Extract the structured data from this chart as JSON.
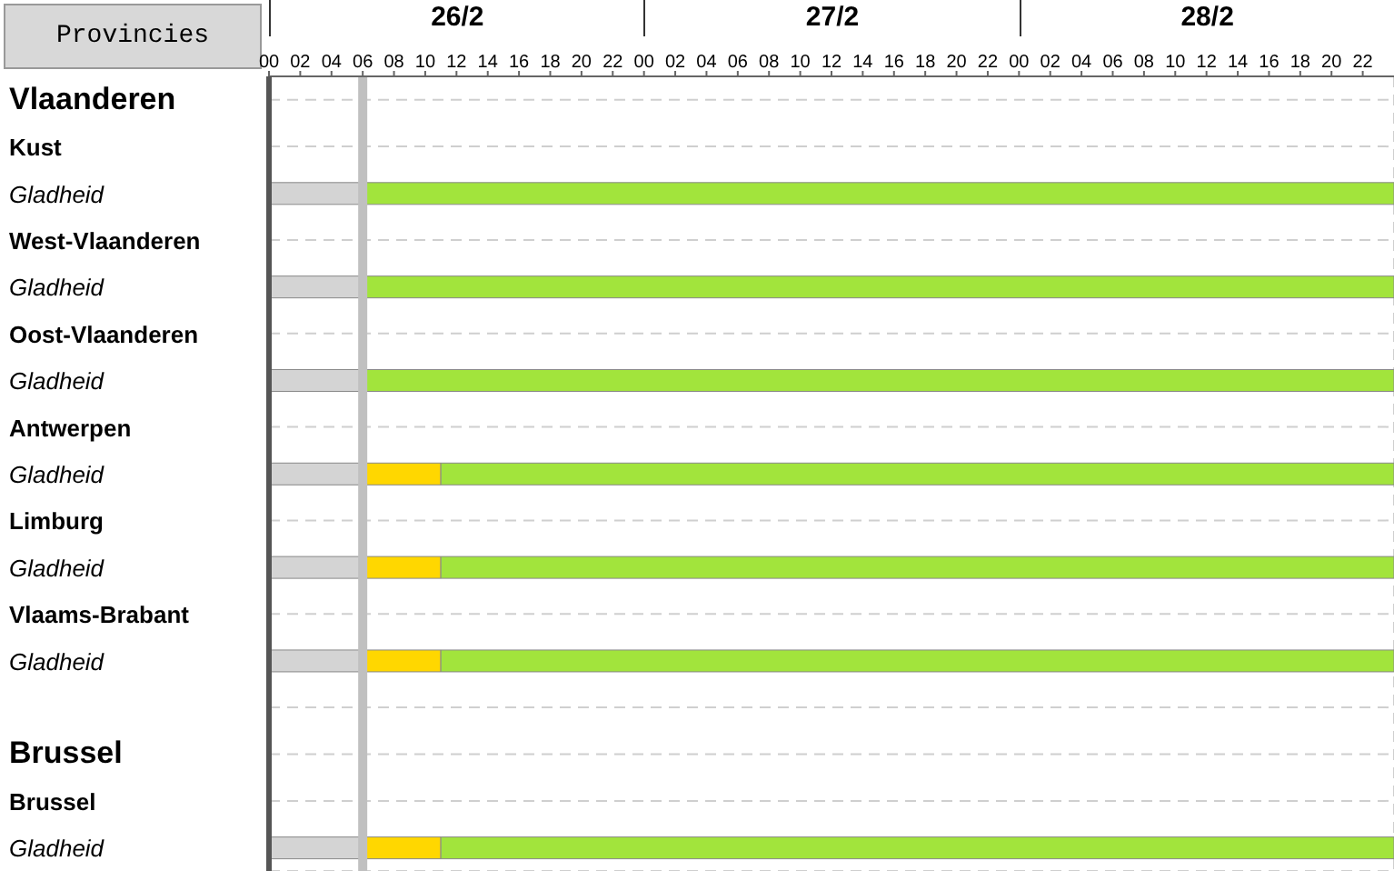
{
  "chart_data": {
    "type": "bar",
    "orientation": "horizontal",
    "stacked": true,
    "ylabel": "Provincies",
    "categories": [
      "Vlaanderen",
      "Kust",
      "Gladheid",
      "West-Vlaanderen",
      "Gladheid",
      "Oost-Vlaanderen",
      "Gladheid",
      "Antwerpen",
      "Gladheid",
      "Limburg",
      "Gladheid",
      "Vlaams-Brabant",
      "Gladheid",
      null,
      "Brussel",
      "Brussel",
      "Gladheid"
    ],
    "series": [
      {
        "color": "#d4d4d4",
        "values": [
          null,
          null,
          6,
          null,
          6,
          null,
          6,
          null,
          6,
          null,
          6,
          null,
          6,
          null,
          null,
          null,
          6
        ]
      },
      {
        "color": "#ffd700",
        "values": [
          null,
          null,
          null,
          null,
          null,
          null,
          null,
          null,
          5,
          null,
          5,
          null,
          5,
          null,
          null,
          null,
          5
        ]
      },
      {
        "color": "#a2e43c",
        "values": [
          null,
          null,
          66,
          null,
          66,
          null,
          66,
          null,
          61,
          null,
          61,
          null,
          61,
          null,
          null,
          null,
          61
        ]
      }
    ],
    "xlim": [
      0,
      72
    ],
    "xticks": [
      {
        "value": 0,
        "label": "00"
      },
      {
        "value": 2,
        "label": "02"
      },
      {
        "value": 4,
        "label": "04"
      },
      {
        "value": 6,
        "label": "06"
      },
      {
        "value": 8,
        "label": "08"
      },
      {
        "value": 10,
        "label": "10"
      },
      {
        "value": 12,
        "label": "12"
      },
      {
        "value": 14,
        "label": "14"
      },
      {
        "value": 16,
        "label": "16"
      },
      {
        "value": 18,
        "label": "18"
      },
      {
        "value": 20,
        "label": "20"
      },
      {
        "value": 22,
        "label": "22"
      },
      {
        "value": 24,
        "label": "00"
      },
      {
        "value": 26,
        "label": "02"
      },
      {
        "value": 28,
        "label": "04"
      },
      {
        "value": 30,
        "label": "06"
      },
      {
        "value": 32,
        "label": "08"
      },
      {
        "value": 34,
        "label": "10"
      },
      {
        "value": 36,
        "label": "12"
      },
      {
        "value": 38,
        "label": "14"
      },
      {
        "value": 40,
        "label": "16"
      },
      {
        "value": 42,
        "label": "18"
      },
      {
        "value": 44,
        "label": "20"
      },
      {
        "value": 46,
        "label": "22"
      },
      {
        "value": 48,
        "label": "00"
      },
      {
        "value": 50,
        "label": "02"
      },
      {
        "value": 52,
        "label": "04"
      },
      {
        "value": 54,
        "label": "06"
      },
      {
        "value": 56,
        "label": "08"
      },
      {
        "value": 58,
        "label": "10"
      },
      {
        "value": 60,
        "label": "12"
      },
      {
        "value": 62,
        "label": "14"
      },
      {
        "value": 64,
        "label": "16"
      },
      {
        "value": 66,
        "label": "18"
      },
      {
        "value": 68,
        "label": "20"
      },
      {
        "value": 70,
        "label": "22"
      }
    ],
    "annotations": [
      "26/2",
      "27/2",
      "28/2"
    ],
    "ref_lines": [
      {
        "axis": "x",
        "value": 6,
        "color": "#c0c0c0"
      }
    ],
    "grid": true
  }
}
